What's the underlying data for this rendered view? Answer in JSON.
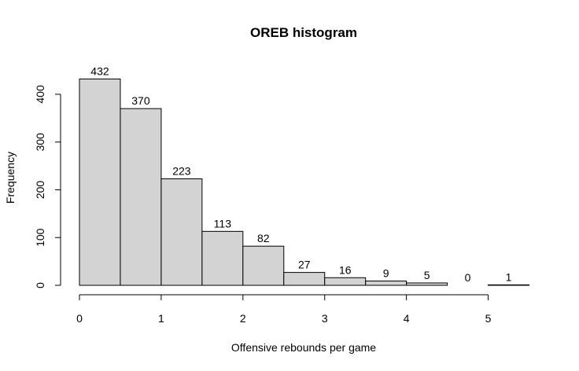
{
  "chart_data": {
    "type": "bar",
    "title": "OREB histogram",
    "xlabel": "Offensive rebounds per game",
    "ylabel": "Frequency",
    "bin_edges": [
      0,
      0.5,
      1,
      1.5,
      2,
      2.5,
      3,
      3.5,
      4,
      4.5,
      5,
      5.5
    ],
    "values": [
      432,
      370,
      223,
      113,
      82,
      27,
      16,
      9,
      5,
      0,
      1
    ],
    "xlim": [
      0,
      5.5
    ],
    "ylim": [
      0,
      432
    ],
    "x_ticks": [
      "0",
      "1",
      "2",
      "3",
      "4",
      "5"
    ],
    "y_ticks": [
      "0",
      "100",
      "200",
      "300",
      "400"
    ],
    "grid": false,
    "bar_fill": "#d3d3d3",
    "bar_stroke": "#000000"
  }
}
